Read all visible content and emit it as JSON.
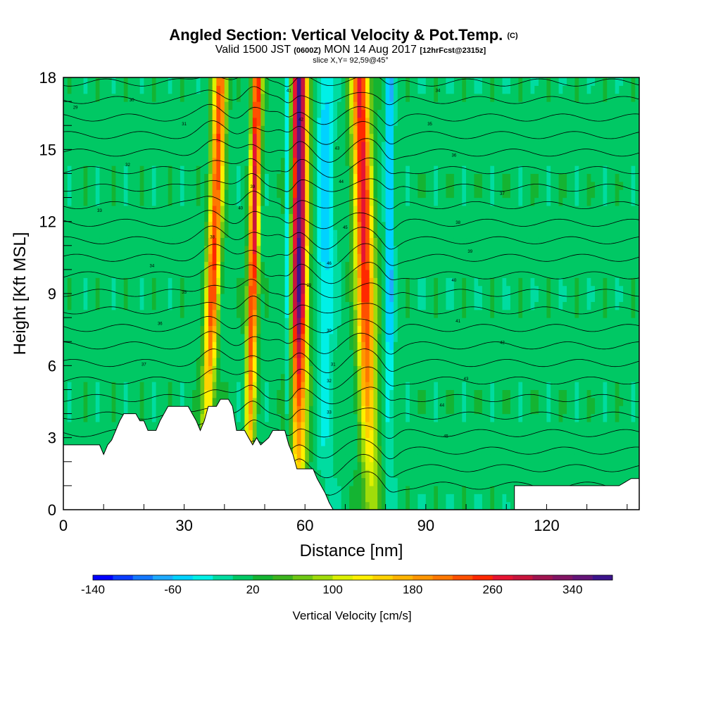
{
  "chart_data": {
    "type": "heatmap",
    "title": {
      "main": "Angled Section: Vertical Velocity & Pot.Temp.",
      "main_suffix": "(C)",
      "line2_a": "Valid 1500 JST",
      "line2_b": "(0600Z)",
      "line2_c": "MON 14 Aug 2017",
      "line2_d": "[12hrFcst@2315z]",
      "line3": "slice X,Y= 92,59@45°"
    },
    "xlabel": "Distance [nm]",
    "ylabel": "Height [Kft MSL]",
    "xlim": [
      0,
      143
    ],
    "ylim": [
      0,
      18
    ],
    "x_ticks": [
      0,
      30,
      60,
      90,
      120
    ],
    "y_ticks": [
      0,
      3,
      6,
      9,
      12,
      15,
      18
    ],
    "colorbar": {
      "label": "Vertical Velocity [cm/s]",
      "min": -140,
      "max": 380,
      "step": 20,
      "tick_labels": [
        "-140",
        "-60",
        "20",
        "100",
        "180",
        "260",
        "340"
      ],
      "tick_values": [
        -140,
        -60,
        20,
        100,
        180,
        260,
        340
      ],
      "colors": [
        "#0000ff",
        "#0a3cff",
        "#1478ff",
        "#1eaaff",
        "#00d2ff",
        "#00f0e6",
        "#00dca0",
        "#00c864",
        "#14b432",
        "#3cb41e",
        "#6ec814",
        "#a0dc0a",
        "#dcf000",
        "#fff000",
        "#ffd200",
        "#ffb400",
        "#ff9600",
        "#ff7800",
        "#ff5000",
        "#ff2800",
        "#e61432",
        "#c8143c",
        "#a01450",
        "#821464",
        "#641478",
        "#3c148c"
      ]
    },
    "updrafts": [
      {
        "x": 37,
        "peak": 230,
        "width": 1.6
      },
      {
        "x": 47,
        "peak": 270,
        "width": 1.2
      },
      {
        "x": 58.5,
        "peak": 350,
        "width": 2.0
      },
      {
        "x": 75,
        "peak": 260,
        "width": 2.2
      }
    ],
    "downdrafts": [
      {
        "x": 56,
        "peak": -100,
        "width": 0.8
      },
      {
        "x": 65,
        "peak": -60,
        "width": 2.0
      },
      {
        "x": 81,
        "peak": -80,
        "width": 1.0
      }
    ],
    "terrain": [
      [
        0,
        2.7
      ],
      [
        9,
        2.7
      ],
      [
        10,
        2.3
      ],
      [
        11,
        2.7
      ],
      [
        12,
        2.9
      ],
      [
        13,
        3.3
      ],
      [
        14,
        3.7
      ],
      [
        15,
        4.0
      ],
      [
        18,
        4.0
      ],
      [
        19,
        3.7
      ],
      [
        20,
        3.7
      ],
      [
        21,
        3.3
      ],
      [
        23,
        3.3
      ],
      [
        24,
        3.7
      ],
      [
        26,
        4.3
      ],
      [
        31,
        4.3
      ],
      [
        32,
        4.0
      ],
      [
        33,
        3.7
      ],
      [
        34,
        3.3
      ],
      [
        35,
        3.7
      ],
      [
        36,
        4.3
      ],
      [
        38,
        4.3
      ],
      [
        39,
        4.6
      ],
      [
        41,
        4.6
      ],
      [
        42,
        4.3
      ],
      [
        43,
        3.3
      ],
      [
        45,
        3.3
      ],
      [
        46,
        3.0
      ],
      [
        47,
        2.7
      ],
      [
        48,
        3.0
      ],
      [
        49,
        2.7
      ],
      [
        51,
        3.0
      ],
      [
        52,
        3.3
      ],
      [
        53,
        3.3
      ],
      [
        55,
        3.3
      ],
      [
        56,
        2.7
      ],
      [
        57,
        2.3
      ],
      [
        58,
        1.7
      ],
      [
        62,
        1.7
      ],
      [
        63,
        1.3
      ],
      [
        64,
        1.0
      ],
      [
        65,
        0.7
      ],
      [
        66,
        0.3
      ],
      [
        67,
        0
      ],
      [
        140,
        0
      ],
      [
        143,
        0
      ]
    ],
    "terrain_grey_extra": [
      [
        112,
        1.0
      ],
      [
        138,
        1.0
      ],
      [
        141,
        1.3
      ],
      [
        143,
        1.3
      ]
    ],
    "isentropes": {
      "count": 24,
      "base_height": 1.0,
      "spacing": 0.73
    },
    "contour_labels": [
      "29",
      "30",
      "31",
      "32",
      "33",
      "34",
      "35",
      "36",
      "37",
      "38",
      "39",
      "40",
      "41",
      "42",
      "43",
      "44",
      "45",
      "46"
    ]
  }
}
